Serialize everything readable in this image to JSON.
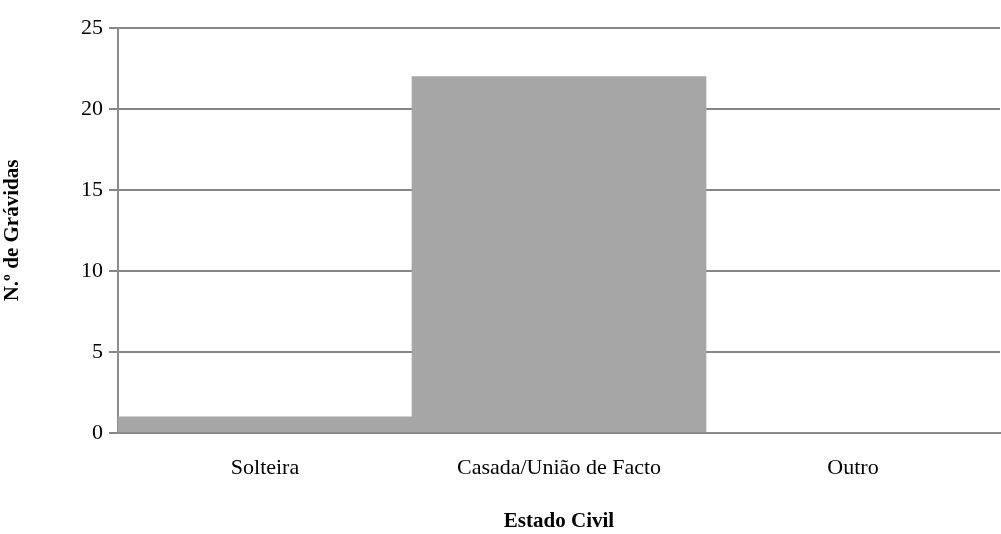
{
  "chart_data": {
    "type": "bar",
    "categories": [
      "Solteira",
      "Casada/União de Facto",
      "Outro"
    ],
    "values": [
      1,
      22,
      0
    ],
    "color": "#a6a6a6",
    "xlabel": "Estado Civil",
    "ylabel": "N.º de Grávidas",
    "ylim": [
      0,
      25
    ],
    "yticks": [
      0,
      5,
      10,
      15,
      20,
      25
    ],
    "grid": "y",
    "legend": false
  }
}
